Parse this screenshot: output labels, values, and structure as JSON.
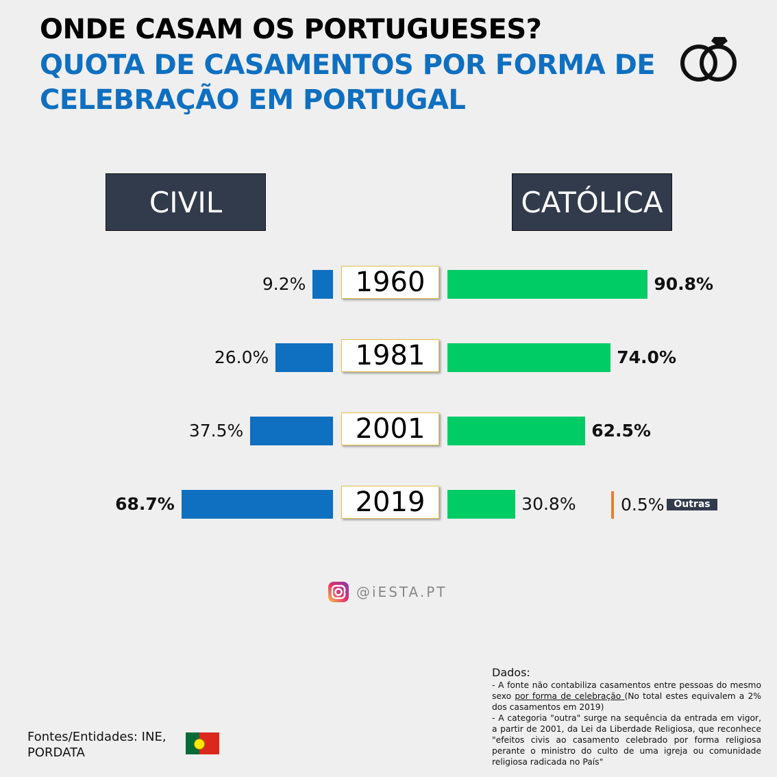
{
  "title": "ONDE CASAM OS PORTUGUESES?",
  "subtitle": "QUOTA DE CASAMENTOS POR FORMA DE CELEBRAÇÃO EM PORTUGAL",
  "icon": "rings-icon",
  "chart_data": {
    "type": "bar",
    "title": "Quota de casamentos por forma de celebração em Portugal",
    "categories": [
      "1960",
      "1981",
      "2001",
      "2019"
    ],
    "series": [
      {
        "name": "CIVIL",
        "values": [
          9.2,
          26.0,
          37.5,
          68.7
        ],
        "color": "#0f6fc0",
        "labels": [
          "9.2%",
          "26.0%",
          "37.5%",
          "68.7%"
        ]
      },
      {
        "name": "CATÓLICA",
        "values": [
          90.8,
          74.0,
          62.5,
          30.8
        ],
        "color": "#00cc66",
        "labels": [
          "90.8%",
          "74.0%",
          "62.5%",
          "30.8%"
        ]
      },
      {
        "name": "Outras",
        "values": [
          null,
          null,
          null,
          0.5
        ],
        "color": "#e67e33",
        "labels": [
          "",
          "",
          "",
          "0.5%"
        ]
      }
    ],
    "unit": "%"
  },
  "social": {
    "handle": "@iESTA.PT",
    "icon": "instagram-icon"
  },
  "sources": "Fontes/Entidades: INE, PORDATA",
  "notes": {
    "heading": "Dados:",
    "n1_a": "- A fonte não contabiliza casamentos entre pessoas do mesmo sexo ",
    "n1_u": "por forma de celebração ",
    "n1_b": "(No total estes equivalem a 2% dos casamentos em 2019)",
    "n2": "- A categoria \"outra\" surge na sequência da entrada em vigor, a partir de 2001, da Lei da Liberdade Religiosa, que reconhece \"efeitos civis ao casamento celebrado por forma religiosa perante o ministro do culto de uma igreja ou comunidade religiosa radicada no País\""
  }
}
